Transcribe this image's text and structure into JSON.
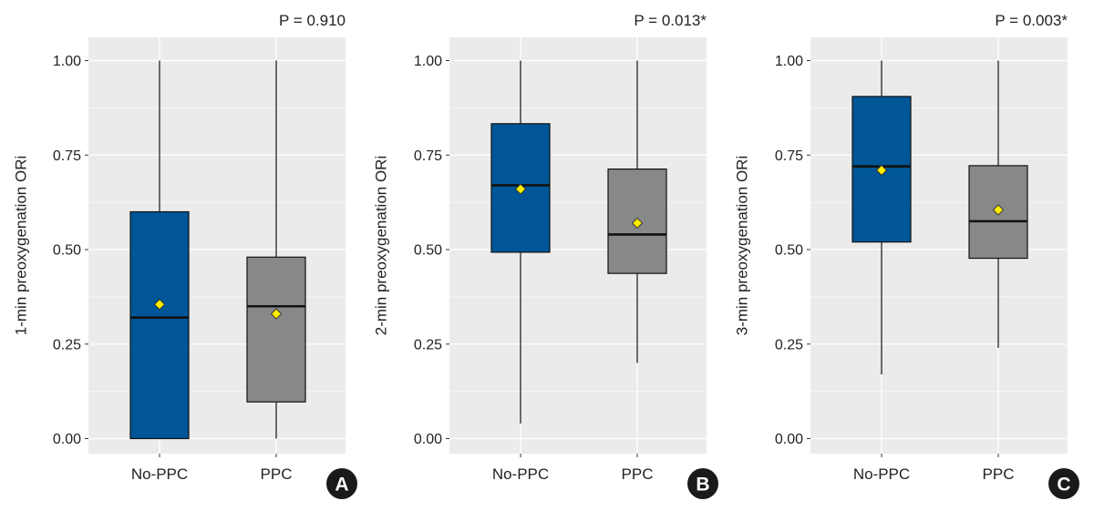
{
  "chart_data": [
    {
      "type": "box",
      "panel_label": "A",
      "p_value": "P = 0.910",
      "ylabel": "1-min preoxygenation ORi",
      "ylim": [
        0,
        1
      ],
      "yticks": [
        "0.00",
        "0.25",
        "0.50",
        "0.75",
        "1.00"
      ],
      "categories": [
        "No-PPC",
        "PPC"
      ],
      "boxes": [
        {
          "category": "No-PPC",
          "min": 0.0,
          "q1": 0.0,
          "median": 0.32,
          "q3": 0.6,
          "max": 1.0,
          "mean": 0.355,
          "color": "#005696"
        },
        {
          "category": "PPC",
          "min": 0.0,
          "q1": 0.097,
          "median": 0.35,
          "q3": 0.48,
          "max": 1.0,
          "mean": 0.33,
          "color": "#888888"
        }
      ]
    },
    {
      "type": "box",
      "panel_label": "B",
      "p_value": "P = 0.013*",
      "ylabel": "2-min preoxygenation ORi",
      "ylim": [
        0,
        1
      ],
      "yticks": [
        "0.00",
        "0.25",
        "0.50",
        "0.75",
        "1.00"
      ],
      "categories": [
        "No-PPC",
        "PPC"
      ],
      "boxes": [
        {
          "category": "No-PPC",
          "min": 0.04,
          "q1": 0.493,
          "median": 0.67,
          "q3": 0.833,
          "max": 1.0,
          "mean": 0.66,
          "color": "#005696"
        },
        {
          "category": "PPC",
          "min": 0.2,
          "q1": 0.437,
          "median": 0.54,
          "q3": 0.713,
          "max": 1.0,
          "mean": 0.57,
          "color": "#888888"
        }
      ]
    },
    {
      "type": "box",
      "panel_label": "C",
      "p_value": "P = 0.003*",
      "ylabel": "3-min preoxygenation ORi",
      "ylim": [
        0,
        1
      ],
      "yticks": [
        "0.00",
        "0.25",
        "0.50",
        "0.75",
        "1.00"
      ],
      "categories": [
        "No-PPC",
        "PPC"
      ],
      "boxes": [
        {
          "category": "No-PPC",
          "min": 0.17,
          "q1": 0.52,
          "median": 0.72,
          "q3": 0.905,
          "max": 1.0,
          "mean": 0.71,
          "color": "#005696"
        },
        {
          "category": "PPC",
          "min": 0.24,
          "q1": 0.477,
          "median": 0.575,
          "q3": 0.722,
          "max": 1.0,
          "mean": 0.605,
          "color": "#888888"
        }
      ]
    }
  ],
  "colors": {
    "panel_bg": "#ebebeb",
    "grid": "#ffffff",
    "mean_marker": "#ffee00",
    "badge": "#1a1a1a"
  }
}
